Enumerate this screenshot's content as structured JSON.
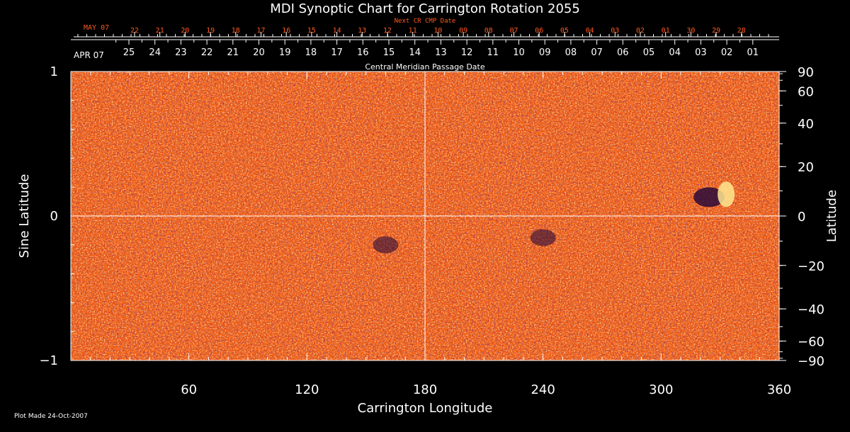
{
  "chart_data": {
    "type": "heatmap",
    "title": "MDI Synoptic Chart for Carrington Rotation 2055",
    "xlabel": "Carrington Longitude",
    "ylabel_left": "Sine Latitude",
    "ylabel_right": "Latitude",
    "xlim": [
      0,
      360
    ],
    "ylim": [
      -1,
      1
    ],
    "x_ticks": [
      60,
      120,
      180,
      240,
      300,
      360
    ],
    "y_ticks_left": [
      {
        "v": 1,
        "label": "1"
      },
      {
        "v": 0,
        "label": "0"
      },
      {
        "v": -1,
        "label": "−1"
      }
    ],
    "y_ticks_right_deg": [
      90,
      60,
      40,
      20,
      0,
      -20,
      -40,
      -60,
      -90
    ],
    "y_ticks_right_labels": [
      "90",
      "60",
      "40",
      "20",
      "0",
      "−20",
      "−40",
      "−60",
      "−90"
    ],
    "gridlines": {
      "x": [
        180
      ],
      "y": [
        0
      ]
    },
    "colors": {
      "background": "#000000",
      "map_base": "#f05a10",
      "positive": "#ffe890",
      "negative": "#2a0a3a",
      "next_cr_text": "#ff5a1e",
      "text": "#ffffff"
    },
    "top_axis_next": {
      "label": "Next CR CMP Date",
      "month": "MAY 07",
      "days": [
        "22",
        "21",
        "20",
        "19",
        "18",
        "17",
        "16",
        "15",
        "14",
        "13",
        "12",
        "11",
        "10",
        "09",
        "08",
        "07",
        "06",
        "05",
        "04",
        "03",
        "02",
        "01",
        "30",
        "29",
        "28"
      ]
    },
    "top_axis_current": {
      "label": "Central Meridian Passage Date",
      "month": "APR 07",
      "days": [
        "25",
        "24",
        "23",
        "22",
        "21",
        "20",
        "19",
        "18",
        "17",
        "16",
        "15",
        "14",
        "13",
        "12",
        "11",
        "10",
        "09",
        "08",
        "07",
        "06",
        "05",
        "04",
        "03",
        "02",
        "01"
      ]
    },
    "features": [
      {
        "type": "active-region",
        "longitude": 328,
        "sin_latitude": 0.15,
        "polarity": "bipolar"
      },
      {
        "type": "negative-patch",
        "longitude": 160,
        "sin_latitude": -0.2
      },
      {
        "type": "negative-patch",
        "longitude": 240,
        "sin_latitude": -0.15
      }
    ],
    "footer": "Plot Made 24-Oct-2007"
  }
}
